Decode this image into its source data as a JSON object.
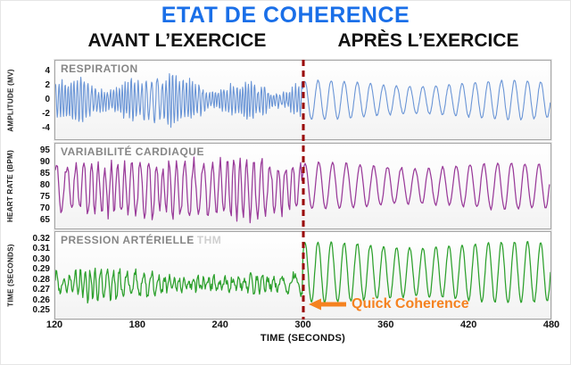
{
  "page": {
    "title": "ETAT DE COHERENCE",
    "col_before": "AVANT L’EXERCICE",
    "col_after": "APRÈS L’EXERCICE"
  },
  "colors": {
    "title": "#1a6fe8",
    "respiration": "#6a95d6",
    "heart_rate": "#993a99",
    "blood_pressure": "#2ca02c",
    "divider": "#990000",
    "annotation": "#f58220"
  },
  "annotation": {
    "label": "Quick Coherence"
  },
  "x_axis": {
    "label": "TIME (SECONDS)",
    "min": 120,
    "max": 480,
    "ticks": [
      120,
      180,
      240,
      300,
      360,
      420,
      480
    ],
    "divider_x": 300
  },
  "chart_data": [
    {
      "type": "line",
      "title": "RESPIRATION",
      "ylabel": "AMPLITUDE (MV)",
      "yticks": [
        "4",
        "2",
        "0",
        "-2",
        "-4"
      ],
      "ylim": [
        -5.5,
        5.5
      ],
      "xlim": [
        120,
        480
      ],
      "color_key": "respiration",
      "stroke_width": 1.1,
      "description": "Irregular fast breathing waveform (about ±1 to ±4 mV) before 300 s; regular ~0.1 Hz sinusoidal breathing (about ±2.5 mV) after 300 s",
      "signal": {
        "dt": 0.35,
        "before": {
          "center": 0,
          "freq": [
            0.22,
            0.5
          ],
          "amp": [
            0.9,
            3.8
          ],
          "noise": 0.35
        },
        "after": {
          "center": 0,
          "freq": 0.105,
          "amp": 2.3,
          "amp_mod": 0.4,
          "noise": 0.08
        }
      }
    },
    {
      "type": "line",
      "title": "VARIABILITÉ CARDIAQUE",
      "ylabel": "HEART RATE (BPM)",
      "yticks": [
        "95",
        "90",
        "85",
        "80",
        "75",
        "70",
        "65"
      ],
      "ylim": [
        61.5,
        98.5
      ],
      "xlim": [
        120,
        480
      ],
      "color_key": "heart_rate",
      "stroke_width": 1.25,
      "description": "Jagged chaotic heart-rate variability 65–95 BPM before 300 s; smooth coherent ~0.1 Hz oscillation about 70–90 BPM after 300 s",
      "signal": {
        "dt": 0.8,
        "before": {
          "center": 79,
          "freq": [
            0.07,
            0.22
          ],
          "amp": [
            5,
            13
          ],
          "noise": 2.6
        },
        "after": {
          "center": 80,
          "freq": 0.1,
          "amp": 9,
          "amp_mod": 1.2,
          "noise": 0.5
        }
      }
    },
    {
      "type": "line",
      "title": "PRESSION ARTÉRIELLE",
      "title_suffix": "THM",
      "ylabel": "TIME (SECONDS)",
      "yticks": [
        "0.32",
        "0.31",
        "0.30",
        "0.29",
        "0.28",
        "0.27",
        "0.26",
        "0.25"
      ],
      "ylim": [
        0.2425,
        0.3275
      ],
      "xlim": [
        120,
        480
      ],
      "color_key": "blood_pressure",
      "stroke_width": 1.25,
      "description": "Noisy blood-pressure timing signal about 0.25–0.31 s before 300 s; regular ~0.1 Hz oscillation about 0.26–0.32 s after 300 s",
      "signal": {
        "dt": 0.5,
        "before": {
          "center": 0.2765,
          "freq": [
            0.09,
            0.3
          ],
          "amp": [
            0.004,
            0.016
          ],
          "noise": 0.004
        },
        "after": {
          "center": 0.288,
          "freq": 0.105,
          "amp": 0.027,
          "amp_mod": 0.003,
          "noise": 0.001
        }
      }
    }
  ]
}
